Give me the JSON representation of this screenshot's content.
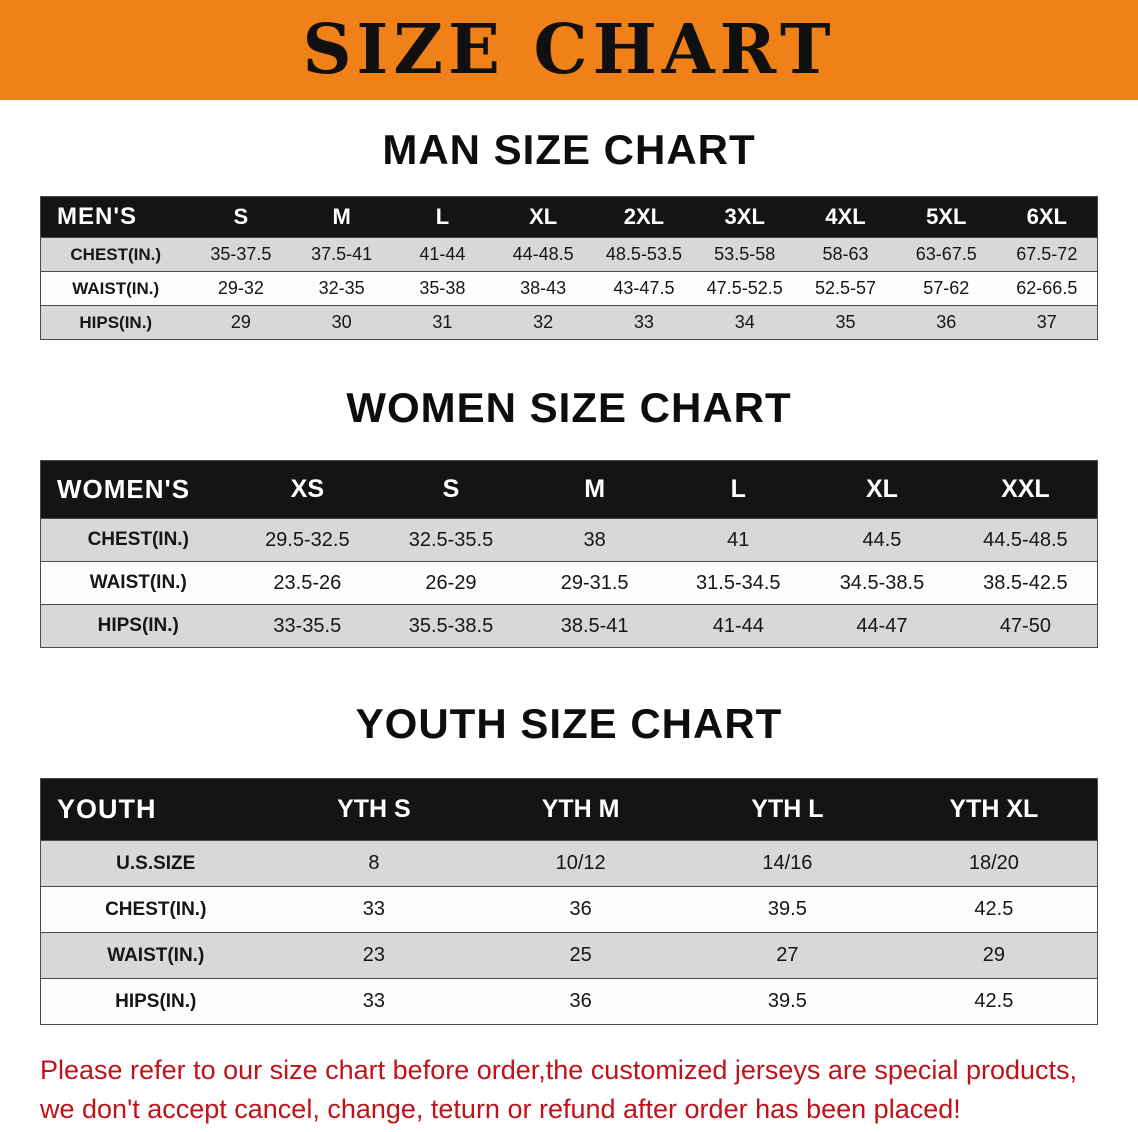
{
  "banner": {
    "title": "SIZE CHART"
  },
  "sections": [
    {
      "id": "men",
      "heading": "MAN SIZE CHART",
      "header_label": "MEN'S",
      "columns": [
        "S",
        "M",
        "L",
        "XL",
        "2XL",
        "3XL",
        "4XL",
        "5XL",
        "6XL"
      ],
      "rows": [
        {
          "label": "CHEST(IN.)",
          "values": [
            "35-37.5",
            "37.5-41",
            "41-44",
            "44-48.5",
            "48.5-53.5",
            "53.5-58",
            "58-63",
            "63-67.5",
            "67.5-72"
          ]
        },
        {
          "label": "WAIST(IN.)",
          "values": [
            "29-32",
            "32-35",
            "35-38",
            "38-43",
            "43-47.5",
            "47.5-52.5",
            "52.5-57",
            "57-62",
            "62-66.5"
          ]
        },
        {
          "label": "HIPS(IN.)",
          "values": [
            "29",
            "30",
            "31",
            "32",
            "33",
            "34",
            "35",
            "36",
            "37"
          ]
        }
      ]
    },
    {
      "id": "women",
      "heading": "WOMEN SIZE CHART",
      "header_label": "WOMEN'S",
      "columns": [
        "XS",
        "S",
        "M",
        "L",
        "XL",
        "XXL"
      ],
      "rows": [
        {
          "label": "CHEST(IN.)",
          "values": [
            "29.5-32.5",
            "32.5-35.5",
            "38",
            "41",
            "44.5",
            "44.5-48.5"
          ]
        },
        {
          "label": "WAIST(IN.)",
          "values": [
            "23.5-26",
            "26-29",
            "29-31.5",
            "31.5-34.5",
            "34.5-38.5",
            "38.5-42.5"
          ]
        },
        {
          "label": "HIPS(IN.)",
          "values": [
            "33-35.5",
            "35.5-38.5",
            "38.5-41",
            "41-44",
            "44-47",
            "47-50"
          ]
        }
      ]
    },
    {
      "id": "youth",
      "heading": "YOUTH SIZE CHART",
      "header_label": "YOUTH",
      "columns": [
        "YTH S",
        "YTH M",
        "YTH L",
        "YTH XL"
      ],
      "rows": [
        {
          "label": "U.S.SIZE",
          "values": [
            "8",
            "10/12",
            "14/16",
            "18/20"
          ]
        },
        {
          "label": "CHEST(IN.)",
          "values": [
            "33",
            "36",
            "39.5",
            "42.5"
          ]
        },
        {
          "label": "WAIST(IN.)",
          "values": [
            "23",
            "25",
            "27",
            "29"
          ]
        },
        {
          "label": "HIPS(IN.)",
          "values": [
            "33",
            "36",
            "39.5",
            "42.5"
          ]
        }
      ]
    }
  ],
  "footer": {
    "line1": "Please refer to our size chart before order,the customized jerseys are special products,",
    "line2": "we don't accept cancel, change, teturn or refund after order has been placed!"
  },
  "colors": {
    "banner_orange": "#f08119",
    "header_black": "#141414",
    "row_gray": "#d8d8d8",
    "footer_red": "#c01218"
  }
}
